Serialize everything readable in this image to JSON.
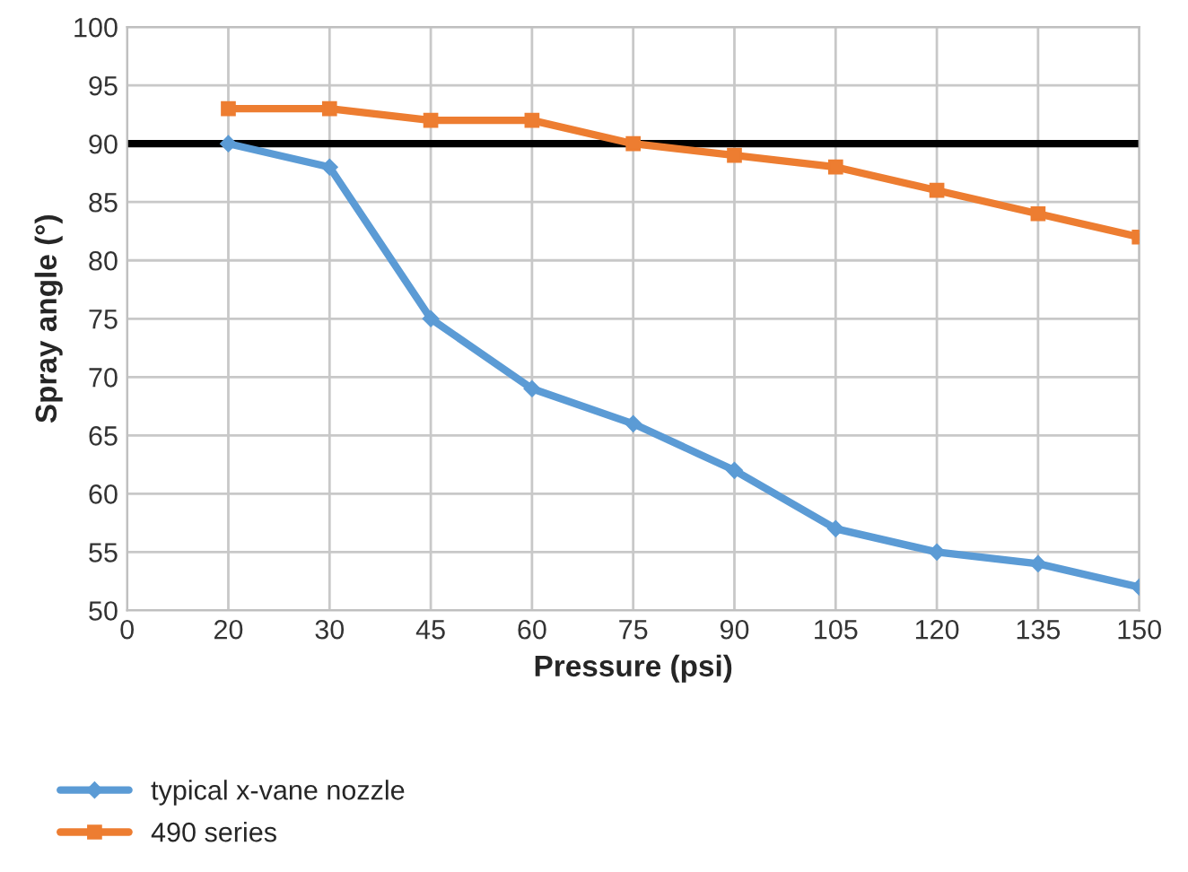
{
  "chart_data": {
    "type": "line",
    "xlabel": "Pressure (psi)",
    "ylabel": "Spray angle (°)",
    "categories": [
      "0",
      "20",
      "30",
      "45",
      "60",
      "75",
      "90",
      "105",
      "120",
      "135",
      "150"
    ],
    "series": [
      {
        "name": "typical x-vane nozzle",
        "color": "#5b9bd5",
        "marker": "diamond",
        "values": [
          null,
          90,
          88,
          75,
          69,
          66,
          62,
          57,
          55,
          54,
          52
        ]
      },
      {
        "name": "490 series",
        "color": "#ed7d31",
        "marker": "square",
        "values": [
          null,
          93,
          93,
          92,
          92,
          90,
          89,
          88,
          86,
          84,
          82
        ]
      }
    ],
    "ylim": [
      50,
      100
    ],
    "yticks": [
      50,
      55,
      60,
      65,
      70,
      75,
      80,
      85,
      90,
      95,
      100
    ],
    "ref_lines": [
      {
        "axis": "y",
        "value": 90,
        "color": "#000000"
      }
    ],
    "grid": true,
    "legend": "bottom left",
    "line_style": "solid"
  }
}
